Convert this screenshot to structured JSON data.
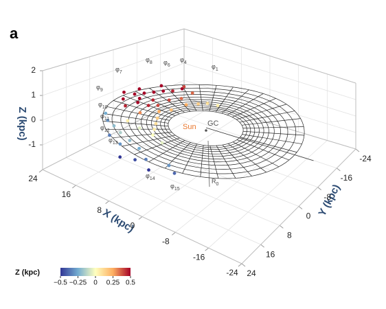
{
  "panel_label": "a",
  "chart_data": {
    "type": "scatter3d",
    "xlabel": "X (kpc)",
    "ylabel": "Y (kpc)",
    "zlabel": "Z (kpc)",
    "xlim": [
      -24,
      24
    ],
    "ylim": [
      -24,
      24
    ],
    "zlim": [
      -2,
      2
    ],
    "xticks": [
      -24,
      -16,
      -8,
      0,
      8,
      16,
      24
    ],
    "yticks": [
      -24,
      -16,
      -8,
      0,
      8,
      16,
      24
    ],
    "zticks": [
      -1,
      0,
      1,
      2
    ],
    "annotations": [
      "GC",
      "Sun"
    ],
    "ring_labels": [
      {
        "base": "φ",
        "sub": "1"
      },
      {
        "base": "φ",
        "sub": "4"
      },
      {
        "base": "φ",
        "sub": "6"
      },
      {
        "base": "φ",
        "sub": "7"
      },
      {
        "base": "φ",
        "sub": "8"
      },
      {
        "base": "φ",
        "sub": "9"
      },
      {
        "base": "φ",
        "sub": "10"
      },
      {
        "base": "φ",
        "sub": "11"
      },
      {
        "base": "φ",
        "sub": "12"
      },
      {
        "base": "φ",
        "sub": "13"
      },
      {
        "base": "φ",
        "sub": "14"
      },
      {
        "base": "φ",
        "sub": "15"
      }
    ],
    "radius_label": {
      "base": "R",
      "sub": "0"
    },
    "points": {
      "x": [
        14,
        15,
        16,
        13,
        12,
        17,
        15,
        13,
        11,
        14,
        18,
        12,
        10,
        16,
        19,
        11,
        13,
        10,
        17,
        15,
        9,
        8,
        7,
        10,
        9,
        6,
        8,
        12,
        4,
        7,
        6,
        10,
        13,
        3,
        15,
        18,
        20,
        12,
        9,
        6,
        3,
        1,
        5,
        10,
        -2,
        -4,
        14,
        8
      ],
      "y": [
        -4,
        -2,
        0,
        -6,
        -8,
        2,
        3,
        1,
        -2,
        5,
        -1,
        4,
        -5,
        -6,
        3,
        2,
        -10,
        -9,
        6,
        8,
        0,
        -4,
        -7,
        3,
        5,
        -9,
        7,
        7,
        -10,
        9,
        11,
        10,
        10,
        12,
        12,
        10,
        8,
        14,
        15,
        16,
        18,
        20,
        19,
        17,
        17,
        18,
        15,
        20
      ],
      "z": [
        0.5,
        0.5,
        0.5,
        0.45,
        0.5,
        0.5,
        0.5,
        0.45,
        0.4,
        0.5,
        0.5,
        0.45,
        0.35,
        0.5,
        0.5,
        0.4,
        0.4,
        0.35,
        0.5,
        0.45,
        0.2,
        0.25,
        0.15,
        0.25,
        0.15,
        0.1,
        0.1,
        0.3,
        0.05,
        0.05,
        0,
        -0.05,
        0.05,
        -0.05,
        -0.2,
        -0.3,
        -0.25,
        -0.15,
        -0.2,
        -0.25,
        -0.35,
        -0.5,
        -0.45,
        -0.3,
        -0.3,
        -0.4,
        -0.35,
        -0.5
      ]
    },
    "colorbar": {
      "label": "Z (kpc)",
      "lim": [
        -0.5,
        0.5
      ],
      "ticks": [
        {
          "value": -0.5,
          "label": "−0.5"
        },
        {
          "value": -0.25,
          "label": "−0.25"
        },
        0,
        0.25,
        0.5
      ],
      "colorscale": [
        [
          -0.5,
          "#313695"
        ],
        [
          -0.25,
          "#74add1"
        ],
        [
          0,
          "#ffffbf"
        ],
        [
          0.25,
          "#fdae61"
        ],
        [
          0.5,
          "#a50026"
        ]
      ]
    }
  }
}
